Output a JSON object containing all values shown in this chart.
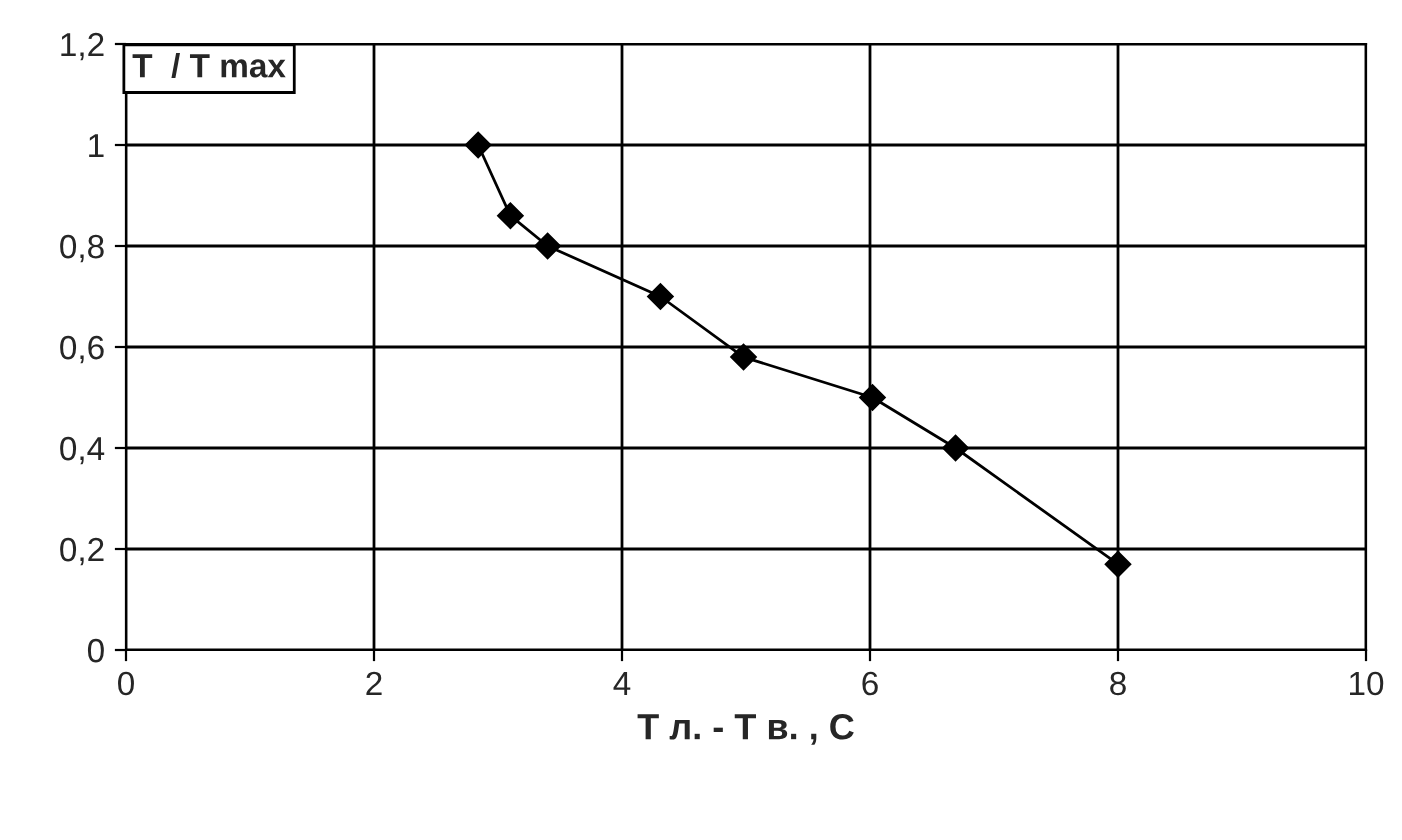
{
  "chart_data": {
    "type": "line",
    "ylabel": "T  / T max",
    "xlabel": "T л. - T в. , С",
    "x": [
      2.84,
      3.1,
      3.4,
      4.31,
      4.98,
      6.02,
      6.69,
      8.0
    ],
    "series": [
      {
        "color": "#000000",
        "values": [
          1.0,
          0.86,
          0.8,
          0.7,
          0.58,
          0.5,
          0.4,
          0.17
        ]
      }
    ],
    "xlim": [
      0,
      10
    ],
    "xticks": [
      0,
      2,
      4,
      6,
      8,
      10
    ],
    "ylim": [
      0,
      1.2
    ],
    "yticks": [
      0,
      {
        "value": 0.2,
        "label": "0,2"
      },
      {
        "value": 0.4,
        "label": "0,4"
      },
      {
        "value": 0.6,
        "label": "0,6"
      },
      {
        "value": 0.8,
        "label": "0,8"
      },
      1,
      {
        "value": 1.2,
        "label": "1,2"
      }
    ],
    "grid": true,
    "marker": "diamond",
    "line_style": "solid"
  }
}
